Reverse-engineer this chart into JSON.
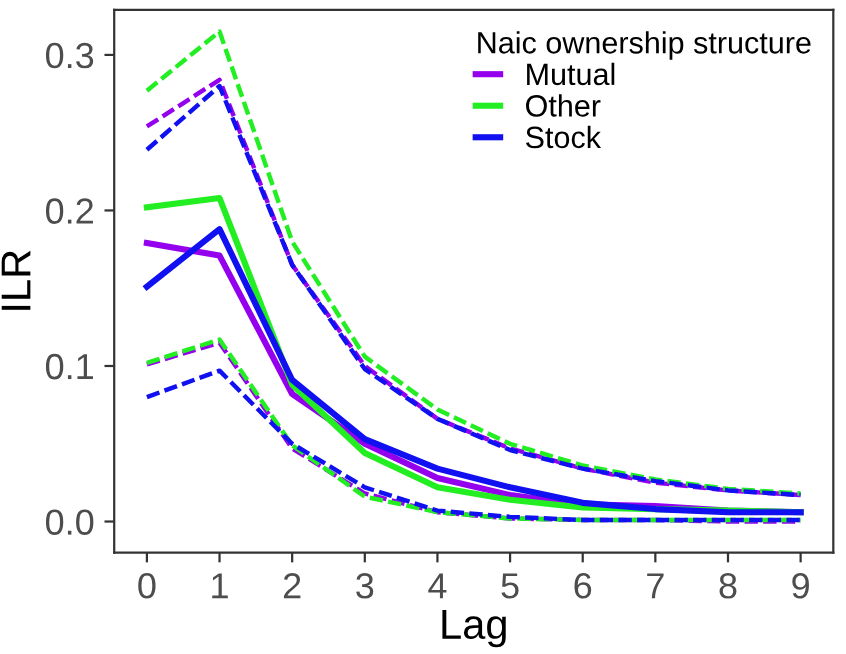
{
  "chart_data": {
    "type": "line",
    "xlabel": "Lag",
    "ylabel": "ILR",
    "legend_title": "Naic ownership structure",
    "x": [
      0,
      1,
      2,
      3,
      4,
      5,
      6,
      7,
      8,
      9
    ],
    "series": [
      {
        "name": "Mutual",
        "color": "#9400ee",
        "values": [
          0.179,
          0.171,
          0.082,
          0.05,
          0.028,
          0.017,
          0.011,
          0.01,
          0.007,
          0.006
        ]
      },
      {
        "name": "Other",
        "color": "#22ee22",
        "values": [
          0.202,
          0.208,
          0.088,
          0.044,
          0.022,
          0.014,
          0.009,
          0.008,
          0.007,
          0.006
        ]
      },
      {
        "name": "Stock",
        "color": "#1010f0",
        "values": [
          0.151,
          0.188,
          0.091,
          0.053,
          0.034,
          0.022,
          0.012,
          0.008,
          0.006,
          0.006
        ]
      },
      {
        "color": "#9400ee",
        "line_style": "dashed",
        "values": [
          0.254,
          0.284,
          0.165,
          0.1,
          0.066,
          0.047,
          0.034,
          0.025,
          0.02,
          0.017
        ]
      },
      {
        "color": "#22ee22",
        "line_style": "dashed",
        "values": [
          0.277,
          0.315,
          0.18,
          0.106,
          0.072,
          0.05,
          0.036,
          0.027,
          0.021,
          0.018
        ]
      },
      {
        "color": "#1010f0",
        "line_style": "dashed",
        "values": [
          0.239,
          0.28,
          0.165,
          0.098,
          0.066,
          0.046,
          0.034,
          0.026,
          0.02,
          0.017
        ]
      },
      {
        "color": "#9400ee",
        "line_style": "dashed",
        "values": [
          0.101,
          0.115,
          0.047,
          0.018,
          0.006,
          0.002,
          0.001,
          0.001,
          0.0,
          0.0
        ]
      },
      {
        "color": "#22ee22",
        "line_style": "dashed",
        "values": [
          0.102,
          0.117,
          0.049,
          0.016,
          0.006,
          0.002,
          0.001,
          0.001,
          0.001,
          0.001
        ]
      },
      {
        "color": "#1010f0",
        "line_style": "dashed",
        "values": [
          0.08,
          0.097,
          0.05,
          0.022,
          0.007,
          0.003,
          0.001,
          0.001,
          0.001,
          0.001
        ]
      }
    ],
    "xlim": [
      -0.45,
      9.45
    ],
    "xticks": [
      0,
      1,
      2,
      3,
      4,
      5,
      6,
      7,
      8,
      9
    ],
    "ylim": [
      -0.02,
      0.329
    ],
    "yticks": [
      {
        "value": 0.0,
        "label": "0.0"
      },
      {
        "value": 0.1,
        "label": "0.1"
      },
      {
        "value": 0.2,
        "label": "0.2"
      },
      {
        "value": 0.3,
        "label": "0.3"
      }
    ],
    "grid": false,
    "legend": "top right",
    "marker": "none",
    "line_style": "solid"
  }
}
